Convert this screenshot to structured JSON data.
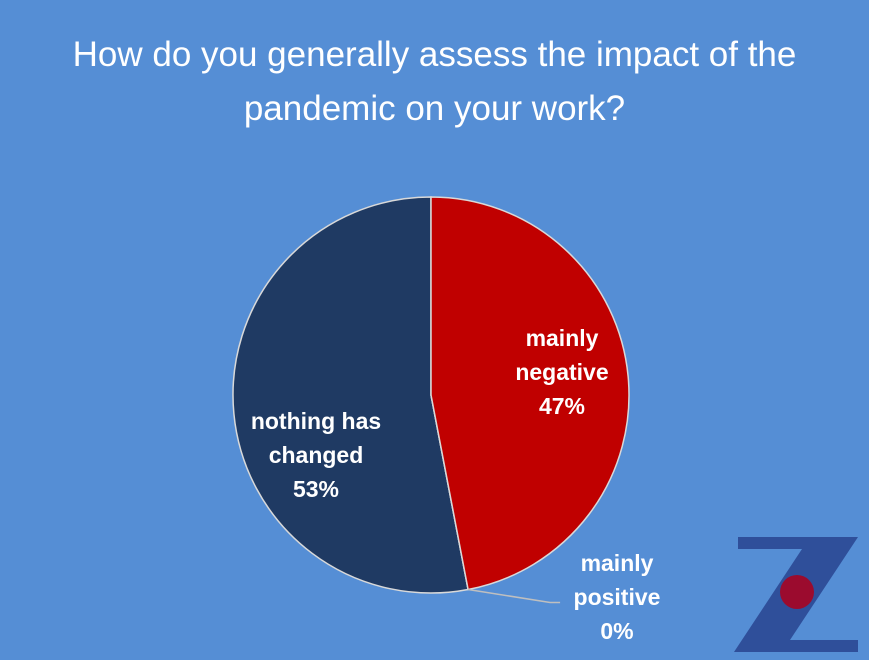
{
  "chart_data": {
    "type": "pie",
    "title": "How do you generally assess the impact of the pandemic on your work?",
    "categories": [
      "mainly negative",
      "mainly positive",
      "nothing has changed"
    ],
    "values": [
      47,
      0,
      53
    ],
    "value_labels": [
      "47%",
      "0%",
      "53%"
    ],
    "colors": [
      "#c00000",
      "#a6a6a6",
      "#1f3a63"
    ]
  }
}
